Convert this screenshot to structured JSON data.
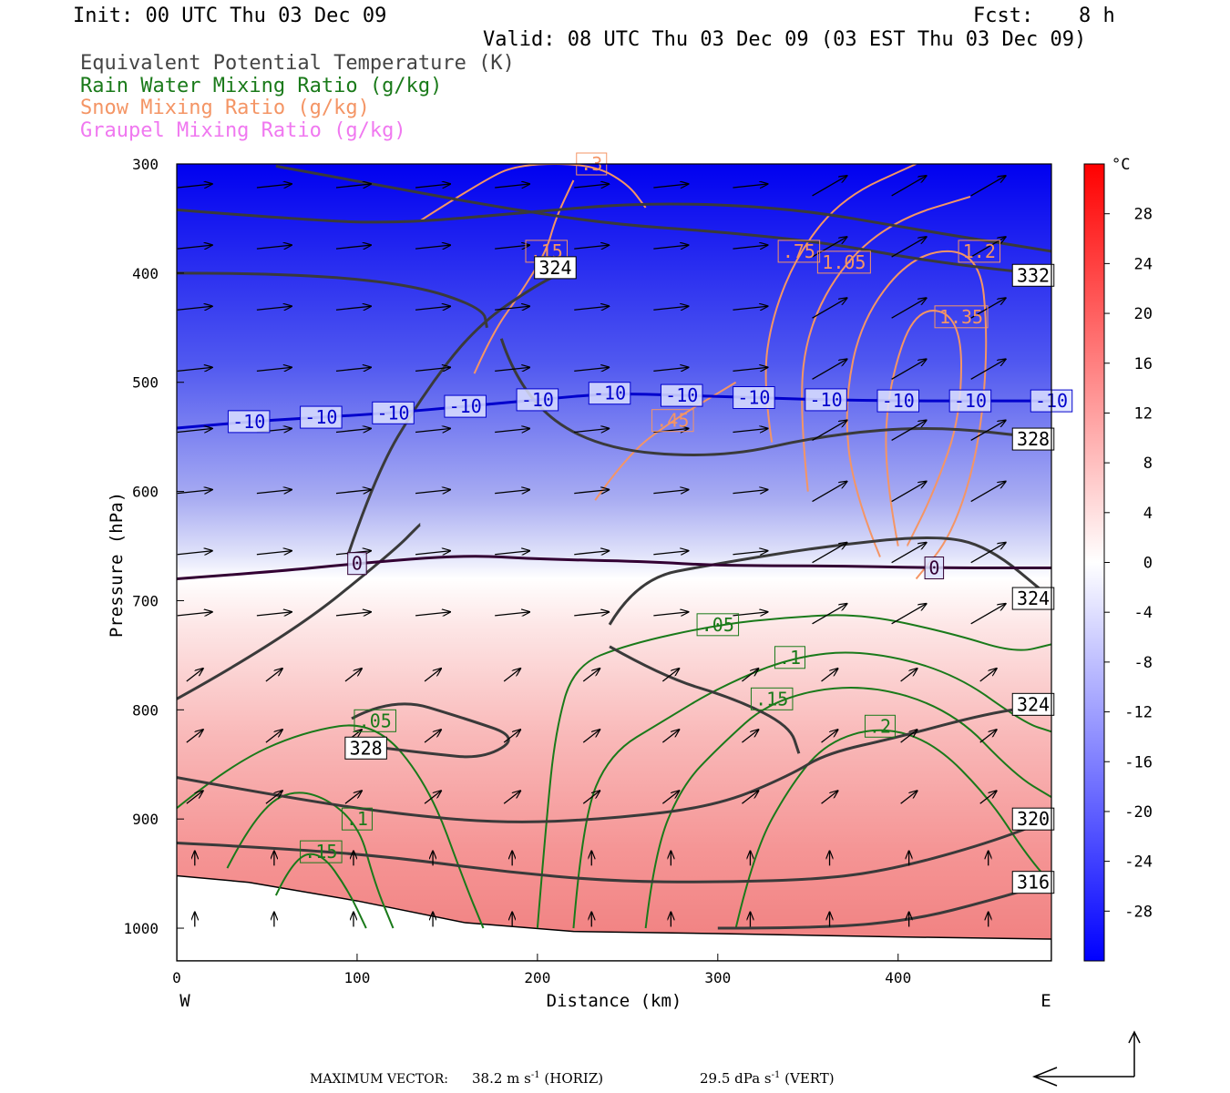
{
  "header": {
    "init": "Init: 00 UTC Thu 03 Dec 09",
    "fcst_label": "Fcst:",
    "fcst_value": "8 h",
    "valid": "Valid: 08 UTC Thu 03 Dec 09 (03 EST Thu 03 Dec 09)",
    "fields": [
      {
        "text": "Equivalent Potential Temperature (K)",
        "color": "#444444"
      },
      {
        "text": "Rain Water Mixing Ratio (g/kg)",
        "color": "#1a7a1a"
      },
      {
        "text": "Snow Mixing Ratio (g/kg)",
        "color": "#f49565"
      },
      {
        "text": "Graupel Mixing Ratio (g/kg)",
        "color": "#f078f0"
      }
    ]
  },
  "chart_data": {
    "type": "contour",
    "xlabel": "Distance (km)",
    "ylabel": "Pressure (hPa)",
    "xlim": [
      0,
      485
    ],
    "ylim": [
      1030,
      300
    ],
    "x_ticks": [
      0,
      100,
      200,
      300,
      400
    ],
    "y_ticks": [
      300,
      400,
      500,
      600,
      700,
      800,
      900,
      1000
    ],
    "x_end_labels": {
      "left": "W",
      "right": "E"
    },
    "colorbar": {
      "unit": "°C",
      "range": [
        -32,
        32
      ],
      "ticks": [
        28,
        24,
        20,
        16,
        12,
        8,
        4,
        0,
        -4,
        -8,
        -12,
        -16,
        -20,
        -24,
        -28
      ],
      "colors": {
        "cold": "#0000ff",
        "zero": "#ffffff",
        "warm": "#ff0000"
      }
    },
    "temperature_contours": [
      {
        "label": "-10",
        "color": "#0000cc",
        "points": [
          [
            0,
            542
          ],
          [
            40,
            536
          ],
          [
            80,
            532
          ],
          [
            120,
            528
          ],
          [
            160,
            522
          ],
          [
            200,
            516
          ],
          [
            240,
            510
          ],
          [
            280,
            512
          ],
          [
            320,
            514
          ],
          [
            360,
            516
          ],
          [
            400,
            517
          ],
          [
            440,
            517
          ],
          [
            485,
            517
          ]
        ]
      },
      {
        "label": "0",
        "color": "#330033",
        "points": [
          [
            0,
            680
          ],
          [
            50,
            674
          ],
          [
            100,
            666
          ],
          [
            160,
            658
          ],
          [
            200,
            662
          ],
          [
            260,
            664
          ],
          [
            300,
            668
          ],
          [
            360,
            668
          ],
          [
            420,
            670
          ],
          [
            485,
            670
          ]
        ]
      }
    ],
    "theta_e_contours": [
      {
        "label": "332",
        "points": [
          [
            55,
            302
          ],
          [
            120,
            322
          ],
          [
            180,
            340
          ],
          [
            240,
            355
          ],
          [
            300,
            362
          ],
          [
            360,
            372
          ],
          [
            420,
            390
          ],
          [
            485,
            402
          ]
        ]
      },
      {
        "label": "",
        "points": [
          [
            0,
            342
          ],
          [
            60,
            350
          ],
          [
            120,
            355
          ],
          [
            190,
            345
          ],
          [
            260,
            335
          ],
          [
            340,
            340
          ],
          [
            410,
            360
          ],
          [
            485,
            380
          ]
        ]
      },
      {
        "label": "328",
        "points": [
          [
            180,
            460
          ],
          [
            190,
            510
          ],
          [
            230,
            560
          ],
          [
            300,
            570
          ],
          [
            360,
            548
          ],
          [
            420,
            540
          ],
          [
            485,
            552
          ]
        ]
      },
      {
        "label": "324",
        "points": [
          [
            95,
            658
          ],
          [
            110,
            585
          ],
          [
            135,
            515
          ],
          [
            165,
            450
          ],
          [
            200,
            410
          ],
          [
            220,
            395
          ]
        ]
      },
      {
        "label": "",
        "points": [
          [
            0,
            400
          ],
          [
            60,
            400
          ],
          [
            130,
            410
          ],
          [
            170,
            432
          ],
          [
            172,
            450
          ]
        ]
      },
      {
        "label": "324",
        "points": [
          [
            240,
            722
          ],
          [
            255,
            680
          ],
          [
            300,
            666
          ],
          [
            360,
            650
          ],
          [
            420,
            640
          ],
          [
            450,
            650
          ],
          [
            485,
            698
          ]
        ]
      },
      {
        "label": "",
        "points": [
          [
            0,
            790
          ],
          [
            60,
            735
          ],
          [
            120,
            655
          ],
          [
            135,
            630
          ]
        ]
      },
      {
        "label": "328",
        "points": [
          [
            97,
            808
          ],
          [
            120,
            788
          ],
          [
            160,
            808
          ],
          [
            190,
            825
          ],
          [
            170,
            845
          ],
          [
            140,
            840
          ],
          [
            115,
            835
          ]
        ]
      },
      {
        "label": "",
        "points": [
          [
            240,
            742
          ],
          [
            270,
            770
          ],
          [
            310,
            790
          ],
          [
            340,
            815
          ],
          [
            345,
            840
          ]
        ]
      },
      {
        "label": "324",
        "points": [
          [
            0,
            862
          ],
          [
            60,
            880
          ],
          [
            120,
            895
          ],
          [
            180,
            904
          ],
          [
            240,
            900
          ],
          [
            300,
            888
          ],
          [
            340,
            860
          ],
          [
            360,
            840
          ],
          [
            400,
            825
          ],
          [
            450,
            803
          ],
          [
            485,
            795
          ]
        ]
      },
      {
        "label": "320",
        "points": [
          [
            0,
            922
          ],
          [
            60,
            927
          ],
          [
            120,
            935
          ],
          [
            180,
            948
          ],
          [
            240,
            957
          ],
          [
            300,
            958
          ],
          [
            360,
            955
          ],
          [
            400,
            945
          ],
          [
            450,
            922
          ],
          [
            485,
            900
          ]
        ]
      },
      {
        "label": "316",
        "points": [
          [
            300,
            1000
          ],
          [
            360,
            1000
          ],
          [
            410,
            992
          ],
          [
            450,
            975
          ],
          [
            485,
            958
          ]
        ]
      }
    ],
    "snow_contours": [
      {
        "label": ".15",
        "points": [
          [
            165,
            492
          ],
          [
            175,
            455
          ],
          [
            190,
            420
          ],
          [
            205,
            380
          ],
          [
            210,
            350
          ],
          [
            220,
            315
          ]
        ]
      },
      {
        "label": ".3",
        "points": [
          [
            135,
            352
          ],
          [
            170,
            315
          ],
          [
            190,
            300
          ],
          [
            230,
            300
          ],
          [
            250,
            318
          ],
          [
            260,
            340
          ]
        ]
      },
      {
        "label": ".45",
        "points": [
          [
            232,
            608
          ],
          [
            250,
            566
          ],
          [
            275,
            535
          ],
          [
            300,
            510
          ],
          [
            310,
            500
          ]
        ]
      },
      {
        "label": ".75",
        "points": [
          [
            330,
            555
          ],
          [
            325,
            500
          ],
          [
            330,
            440
          ],
          [
            345,
            380
          ],
          [
            370,
            330
          ],
          [
            410,
            300
          ]
        ]
      },
      {
        "label": "1.05",
        "points": [
          [
            350,
            600
          ],
          [
            345,
            520
          ],
          [
            350,
            450
          ],
          [
            370,
            390
          ],
          [
            400,
            350
          ],
          [
            440,
            330
          ]
        ]
      },
      {
        "label": "1.2",
        "points": [
          [
            390,
            660
          ],
          [
            375,
            600
          ],
          [
            370,
            520
          ],
          [
            380,
            440
          ],
          [
            410,
            380
          ],
          [
            445,
            380
          ],
          [
            450,
            460
          ],
          [
            445,
            560
          ],
          [
            430,
            640
          ],
          [
            410,
            680
          ]
        ]
      },
      {
        "label": "1.35",
        "points": [
          [
            400,
            650
          ],
          [
            392,
            580
          ],
          [
            395,
            500
          ],
          [
            410,
            430
          ],
          [
            435,
            440
          ],
          [
            435,
            530
          ],
          [
            420,
            600
          ],
          [
            405,
            650
          ]
        ]
      }
    ],
    "rain_contours": [
      {
        "label": ".05",
        "points": [
          [
            0,
            890
          ],
          [
            30,
            850
          ],
          [
            70,
            820
          ],
          [
            110,
            810
          ],
          [
            140,
            870
          ],
          [
            160,
            960
          ],
          [
            170,
            1000
          ]
        ]
      },
      {
        "label": ".1",
        "points": [
          [
            28,
            945
          ],
          [
            45,
            890
          ],
          [
            70,
            870
          ],
          [
            100,
            900
          ],
          [
            110,
            960
          ],
          [
            120,
            1000
          ]
        ]
      },
      {
        "label": ".15",
        "points": [
          [
            55,
            970
          ],
          [
            65,
            935
          ],
          [
            80,
            930
          ],
          [
            95,
            965
          ],
          [
            105,
            1000
          ]
        ]
      },
      {
        "label": ".05",
        "points": [
          [
            200,
            1000
          ],
          [
            205,
            900
          ],
          [
            210,
            820
          ],
          [
            220,
            760
          ],
          [
            250,
            740
          ],
          [
            300,
            722
          ],
          [
            340,
            715
          ],
          [
            380,
            712
          ],
          [
            430,
            730
          ],
          [
            465,
            748
          ],
          [
            485,
            740
          ]
        ]
      },
      {
        "label": ".1",
        "points": [
          [
            220,
            1000
          ],
          [
            225,
            900
          ],
          [
            240,
            840
          ],
          [
            270,
            810
          ],
          [
            300,
            780
          ],
          [
            340,
            752
          ],
          [
            380,
            745
          ],
          [
            430,
            765
          ],
          [
            470,
            812
          ],
          [
            485,
            820
          ]
        ]
      },
      {
        "label": ".15",
        "points": [
          [
            260,
            1000
          ],
          [
            265,
            930
          ],
          [
            280,
            870
          ],
          [
            300,
            835
          ],
          [
            330,
            790
          ],
          [
            380,
            775
          ],
          [
            430,
            800
          ],
          [
            465,
            860
          ],
          [
            485,
            880
          ]
        ]
      },
      {
        "label": ".2",
        "points": [
          [
            310,
            1000
          ],
          [
            320,
            930
          ],
          [
            340,
            870
          ],
          [
            360,
            830
          ],
          [
            390,
            815
          ],
          [
            420,
            830
          ],
          [
            450,
            880
          ],
          [
            470,
            930
          ],
          [
            485,
            960
          ]
        ]
      }
    ]
  },
  "footer": {
    "max_vector_label": "MAXIMUM VECTOR:",
    "horiz_value": "38.2 m s",
    "horiz_unit": "(HORIZ)",
    "vert_value": "29.5 dPa s",
    "vert_unit": "(VERT)",
    "exponent": "-1"
  }
}
